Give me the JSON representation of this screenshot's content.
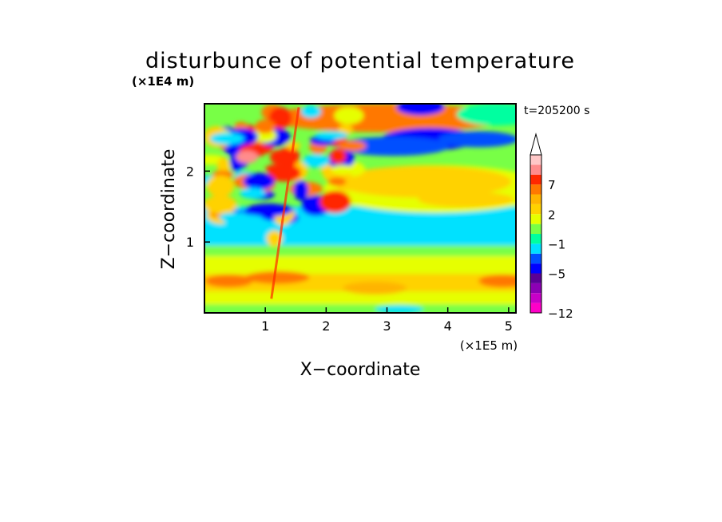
{
  "chart_data": {
    "type": "heatmap",
    "title": "disturbunce of potential temperature",
    "xlabel": "X−coordinate",
    "ylabel": "Z−coordinate",
    "x_unit_label": "(×1E5 m)",
    "y_unit_label": "(×1E4 m)",
    "time_label": "t=205200 s",
    "xlim": [
      0,
      5.12
    ],
    "ylim": [
      0,
      2.95
    ],
    "x_ticks": [
      1,
      2,
      3,
      4,
      5
    ],
    "x_tick_labels": [
      "1",
      "2",
      "3",
      "4",
      "5"
    ],
    "y_ticks": [
      1,
      2
    ],
    "y_tick_labels": [
      "1",
      "2"
    ],
    "colorbar": {
      "levels": [
        -12,
        -10,
        -8,
        -7,
        -5,
        -4,
        -3,
        -1,
        0,
        1,
        2,
        3,
        5,
        7,
        8,
        10
      ],
      "tick_values": [
        7,
        2,
        -1,
        -5,
        -12
      ],
      "tick_labels": [
        "7",
        "2",
        "−1",
        "−5",
        "−12"
      ],
      "colors": [
        "#ff00c8",
        "#c800c8",
        "#8c00b4",
        "#5a0096",
        "#0000ff",
        "#0050ff",
        "#00e1ff",
        "#00ffa0",
        "#78ff46",
        "#e6ff00",
        "#ffd200",
        "#ffb400",
        "#ff7800",
        "#ff2800",
        "#ff8c8c",
        "#ffc8c8"
      ],
      "extend_top": true
    },
    "grid": false,
    "legend_placement": "right"
  }
}
